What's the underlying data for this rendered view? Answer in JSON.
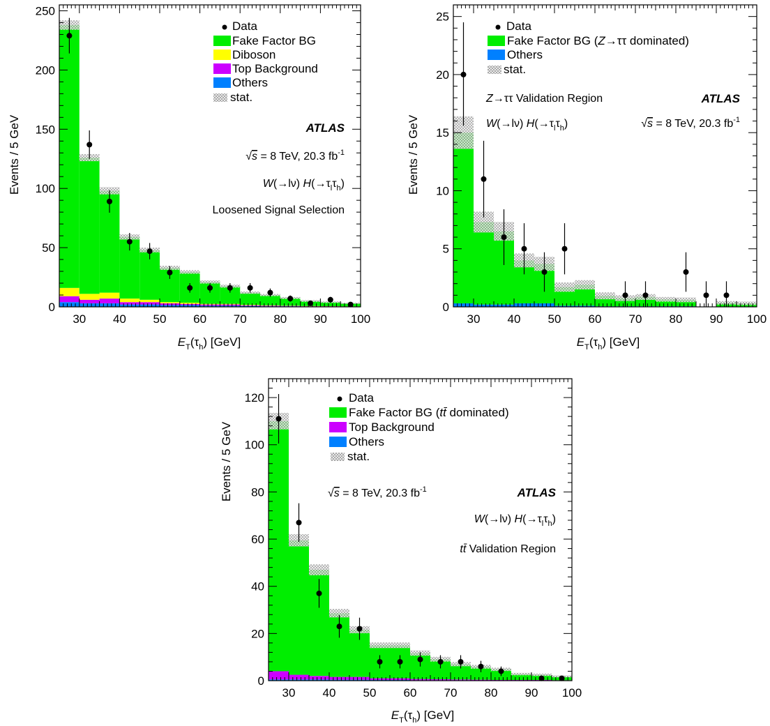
{
  "colors": {
    "fake_factor": "#00ee00",
    "diboson": "#ffff00",
    "top": "#cc00ff",
    "others": "#0080ff",
    "data": "#000000",
    "stat_hatch": "#9a9a9a"
  },
  "chart_data": [
    {
      "type": "bar",
      "panel": "top-left",
      "bin_edges": [
        25,
        30,
        35,
        40,
        45,
        50,
        55,
        60,
        65,
        70,
        75,
        80,
        85,
        90,
        95,
        100
      ],
      "ylim": [
        0,
        255
      ],
      "xlim": [
        25,
        100
      ],
      "xticks": [
        30,
        40,
        50,
        60,
        70,
        80,
        90,
        100
      ],
      "yticks": [
        0,
        50,
        100,
        150,
        200,
        250
      ],
      "ylabel": "Events / 5 GeV",
      "xlabel": {
        "E": "E",
        "T": "T",
        "tau": "(τ",
        "h": "h",
        "rest": ") [GeV]"
      },
      "stack": [
        {
          "name": "Others",
          "color": "others",
          "values": [
            4,
            3,
            3,
            2,
            2,
            1.5,
            1.5,
            1,
            1,
            0.8,
            0.5,
            0.5,
            0.3,
            0.3,
            0.2
          ]
        },
        {
          "name": "Top Background",
          "color": "top",
          "values": [
            5,
            3,
            4,
            2,
            2,
            1.5,
            1,
            1,
            1,
            0.5,
            0.5,
            0.3,
            0.2,
            0.2,
            0.1
          ]
        },
        {
          "name": "Diboson",
          "color": "diboson",
          "values": [
            7,
            5,
            5,
            3,
            2,
            1,
            1,
            0.5,
            0.5,
            0.4,
            0.3,
            0.2,
            0.2,
            0.1,
            0.1
          ]
        },
        {
          "name": "Fake Factor BG",
          "color": "fake_factor",
          "values": [
            222,
            115,
            86,
            52,
            42,
            29,
            26,
            18.5,
            15,
            10.3,
            8.7,
            6.5,
            4.3,
            3.4,
            2.6
          ]
        }
      ],
      "stat_unc": [
        4,
        3,
        3,
        2.2,
        2,
        1.7,
        1.5,
        1.3,
        1.2,
        1,
        0.9,
        0.8,
        0.7,
        0.6,
        0.5
      ],
      "data": {
        "y": [
          229,
          137,
          89,
          55,
          47,
          29,
          16,
          16,
          16,
          16,
          12,
          7,
          3,
          6,
          2
        ],
        "err_lo": [
          15,
          12,
          9.5,
          7.4,
          6.9,
          5.4,
          4,
          4,
          4,
          4,
          3.5,
          2.6,
          1.7,
          2.4,
          1.4
        ],
        "err_hi": [
          15,
          12,
          9.5,
          7.4,
          6.9,
          5.4,
          4,
          4,
          4,
          4,
          3.5,
          2.6,
          1.7,
          2.4,
          1.4
        ]
      },
      "legend": {
        "data": "Data",
        "items": [
          {
            "label": "Fake Factor BG",
            "color": "fake_factor"
          },
          {
            "label": "Diboson",
            "color": "diboson"
          },
          {
            "label": "Top Background",
            "color": "top"
          },
          {
            "label": "Others",
            "color": "others"
          },
          {
            "label": "stat.",
            "color": "hatch"
          }
        ]
      },
      "annotations": {
        "atlas": "ATLAS",
        "energy": {
          "sqrt": "√",
          "s": "s",
          "rest": " = 8 TeV, 20.3 fb",
          "exp": "-1"
        },
        "process": {
          "W": "W",
          "arrow_lv": "(→lν) ",
          "H": "H",
          "paren": "(→τ",
          "l": "l",
          "tau": "τ",
          "h": "h",
          "close": ")"
        },
        "region": "Loosened Signal Selection"
      }
    },
    {
      "type": "bar",
      "panel": "top-right",
      "bin_edges": [
        25,
        30,
        35,
        40,
        45,
        50,
        55,
        60,
        65,
        70,
        75,
        80,
        85,
        90,
        95,
        100
      ],
      "ylim": [
        0,
        26
      ],
      "xlim": [
        25,
        100
      ],
      "xticks": [
        30,
        40,
        50,
        60,
        70,
        80,
        90,
        100
      ],
      "yticks": [
        0,
        5,
        10,
        15,
        20,
        25
      ],
      "ylabel": "Events / 5 GeV",
      "xlabel": {
        "E": "E",
        "T": "T",
        "tau": "(τ",
        "h": "h",
        "rest": ") [GeV]"
      },
      "stack": [
        {
          "name": "Others",
          "color": "others",
          "values": [
            0.3,
            0.2,
            0.2,
            0.3,
            0.3,
            0.1,
            0.1,
            0.05,
            0.05,
            0.05,
            0.05,
            0.05,
            0.0,
            0.0,
            0.0
          ]
        },
        {
          "name": "Fake Factor BG (Z→ττ dominated)",
          "color": "fake_factor",
          "values": [
            14.7,
            7.1,
            6.3,
            3.7,
            3.4,
            1.6,
            1.8,
            0.9,
            0.7,
            0.8,
            0.6,
            0.55,
            0.0,
            0.35,
            0.3
          ]
        }
      ],
      "stat_unc": [
        1.4,
        0.9,
        0.8,
        0.6,
        0.6,
        0.4,
        0.4,
        0.3,
        0.25,
        0.25,
        0.2,
        0.2,
        0.0,
        0.15,
        0.15
      ],
      "data": {
        "y": [
          20,
          11,
          6,
          5,
          3,
          5,
          null,
          null,
          1,
          1,
          null,
          3,
          1,
          1,
          null
        ],
        "err_lo": [
          4.4,
          3.3,
          2.4,
          2.2,
          1.7,
          2.2,
          0,
          0,
          1,
          1,
          0,
          1.7,
          1,
          1,
          0
        ],
        "err_hi": [
          4.5,
          3.3,
          2.4,
          2.2,
          1.7,
          2.2,
          0,
          0,
          1.2,
          1.2,
          0,
          1.7,
          1.2,
          1.2,
          0
        ]
      },
      "legend": {
        "data": "Data",
        "items": [
          {
            "label_pre": "Fake Factor BG (",
            "label_Z": "Z",
            "label_post": "→ττ dominated)",
            "color": "fake_factor"
          },
          {
            "label": "Others",
            "color": "others"
          },
          {
            "label": "stat.",
            "color": "hatch"
          }
        ]
      },
      "annotations": {
        "atlas": "ATLAS",
        "region": {
          "Z": "Z",
          "rest": "→ττ Validation Region"
        },
        "process": {
          "W": "W",
          "arrow_lv": "(→lν) ",
          "H": "H",
          "paren": "(→τ",
          "l": "l",
          "tau": "τ",
          "h": "h",
          "close": ")"
        },
        "energy": {
          "sqrt": "√",
          "s": "s",
          "rest": " = 8 TeV, 20.3 fb",
          "exp": "-1"
        }
      }
    },
    {
      "type": "bar",
      "panel": "bottom",
      "bin_edges": [
        25,
        30,
        35,
        40,
        45,
        50,
        55,
        60,
        65,
        70,
        75,
        80,
        85,
        90,
        95,
        100
      ],
      "ylim": [
        0,
        128
      ],
      "xlim": [
        25,
        100
      ],
      "xticks": [
        30,
        40,
        50,
        60,
        70,
        80,
        90,
        100
      ],
      "yticks": [
        0,
        20,
        40,
        60,
        80,
        100,
        120
      ],
      "ylabel": "Events / 5 GeV",
      "xlabel": {
        "E": "E",
        "T": "T",
        "tau": "(τ",
        "h": "h",
        "rest": ") [GeV]"
      },
      "stack": [
        {
          "name": "Others",
          "color": "others",
          "values": [
            0.5,
            0.5,
            0.5,
            0.4,
            0.4,
            0.3,
            0.3,
            0.2,
            0.2,
            0.2,
            0.1,
            0.1,
            0.1,
            0.1,
            0.1
          ]
        },
        {
          "name": "Top Background",
          "color": "top",
          "values": [
            3.5,
            2,
            1.5,
            1.2,
            1.2,
            0.7,
            0.7,
            0.5,
            0.4,
            0.3,
            0.3,
            0.2,
            0.2,
            0.2,
            0.1
          ]
        },
        {
          "name": "Fake Factor BG (tt̄ dominated)",
          "color": "fake_factor",
          "values": [
            106,
            57,
            45,
            27,
            20,
            14,
            14,
            11,
            8.5,
            6.5,
            5.5,
            4.5,
            2.5,
            2.2,
            1.6
          ]
        }
      ],
      "stat_unc": [
        3.5,
        2.6,
        2.3,
        1.8,
        1.5,
        1.2,
        1.2,
        1.1,
        1,
        0.9,
        0.8,
        0.7,
        0.5,
        0.5,
        0.4
      ],
      "data": {
        "y": [
          111,
          67,
          37,
          23,
          22,
          8,
          8,
          9,
          8,
          8,
          6,
          4,
          null,
          1,
          1
        ],
        "err_lo": [
          10.5,
          8.2,
          6.1,
          4.8,
          4.7,
          2.8,
          2.8,
          3,
          2.8,
          2.8,
          2.4,
          2,
          0,
          1,
          1
        ],
        "err_hi": [
          10.5,
          8.2,
          6.1,
          4.8,
          4.7,
          2.8,
          2.8,
          3,
          2.8,
          2.8,
          2.4,
          2,
          0,
          1,
          1
        ]
      },
      "legend": {
        "data": "Data",
        "items": [
          {
            "label_pre": "Fake Factor BG (",
            "label_t": "tt̄",
            "label_post": " dominated)",
            "color": "fake_factor"
          },
          {
            "label": "Top Background",
            "color": "top"
          },
          {
            "label": "Others",
            "color": "others"
          },
          {
            "label": "stat.",
            "color": "hatch"
          }
        ]
      },
      "annotations": {
        "atlas": "ATLAS",
        "energy": {
          "sqrt": "√",
          "s": "s",
          "rest": " = 8 TeV, 20.3 fb",
          "exp": "-1"
        },
        "process": {
          "W": "W",
          "arrow_lv": "(→lν) ",
          "H": "H",
          "paren": "(→τ",
          "l": "l",
          "tau": "τ",
          "h": "h",
          "close": ")"
        },
        "region": {
          "tt": "tt̄",
          "rest": " Validation Region"
        }
      }
    }
  ]
}
